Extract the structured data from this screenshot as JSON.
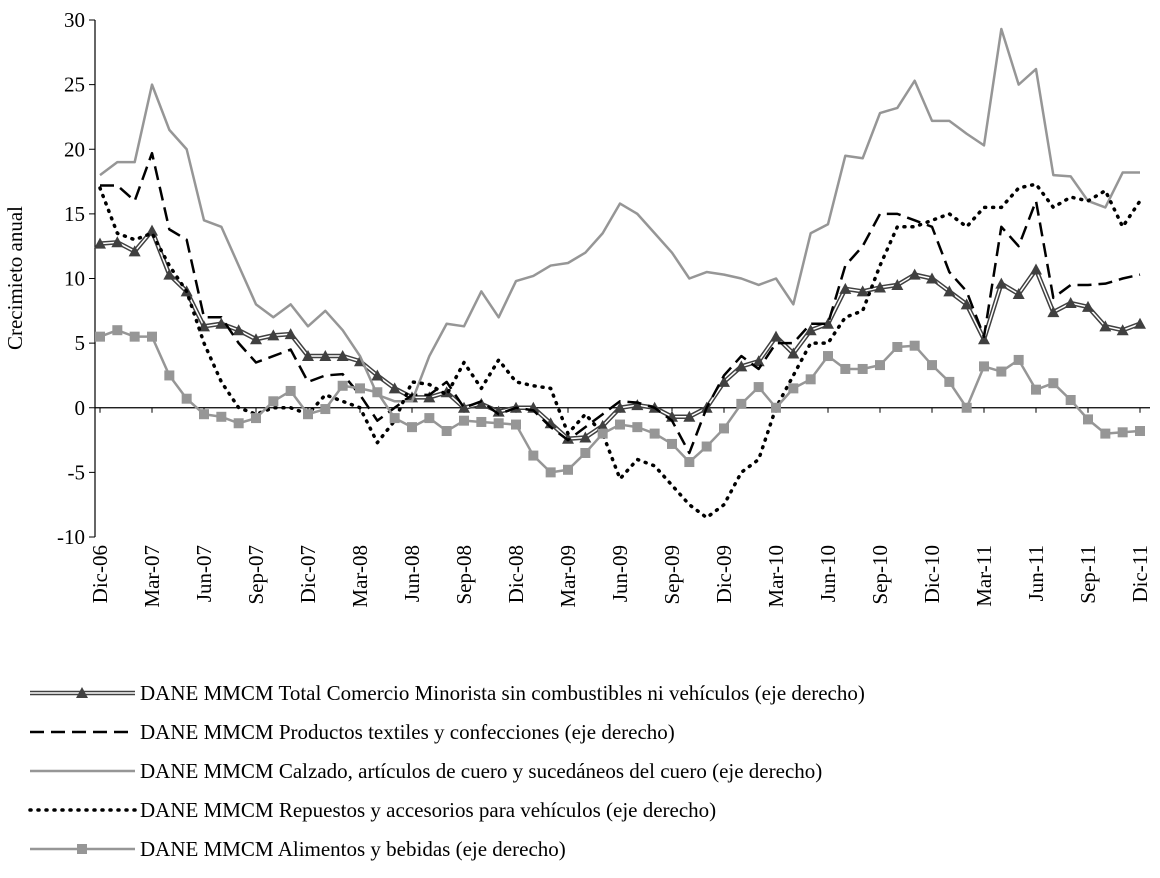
{
  "chart_data": {
    "type": "line",
    "ylabel": "Crecimieto anual",
    "categories": [
      "Dic-06",
      null,
      null,
      "Mar-07",
      null,
      null,
      "Jun-07",
      null,
      null,
      "Sep-07",
      null,
      null,
      "Dic-07",
      null,
      null,
      "Mar-08",
      null,
      null,
      "Jun-08",
      null,
      null,
      "Sep-08",
      null,
      null,
      "Dic-08",
      null,
      null,
      "Mar-09",
      null,
      null,
      "Jun-09",
      null,
      null,
      "Sep-09",
      null,
      null,
      "Dic-09",
      null,
      null,
      "Mar-10",
      null,
      null,
      "Jun-10",
      null,
      null,
      "Sep-10",
      null,
      null,
      "Dic-10",
      null,
      null,
      "Mar-11",
      null,
      null,
      "Jun-11",
      null,
      null,
      "Sep-11",
      null,
      null,
      "Dic-11"
    ],
    "ylim": [
      -10,
      30
    ],
    "yticks": [
      -10,
      -5,
      0,
      5,
      10,
      15,
      20,
      25,
      30
    ],
    "series": [
      {
        "name": "DANE MMCM Total Comercio Minorista sin combustibles ni vehículos (eje derecho)",
        "color": "#404040",
        "style": "double",
        "marker": "triangle",
        "values": [
          12.7,
          12.8,
          12.1,
          13.7,
          10.3,
          9,
          6.3,
          6.5,
          6,
          5.3,
          5.6,
          5.7,
          4,
          4,
          4,
          3.6,
          2.5,
          1.5,
          0.8,
          0.8,
          1.2,
          0,
          0.3,
          -0.3,
          0,
          0,
          -1.2,
          -2.4,
          -2.3,
          -1.4,
          0,
          0.2,
          0,
          -0.7,
          -0.7,
          0,
          2,
          3.2,
          3.6,
          5.5,
          4.2,
          6,
          6.5,
          9.2,
          9,
          9.3,
          9.5,
          10.3,
          10,
          9,
          8,
          5.3,
          9.6,
          8.8,
          10.7,
          7.4,
          8.1,
          7.8,
          6.3,
          6,
          6.5
        ]
      },
      {
        "name": "DANE MMCM Productos textiles y confecciones (eje derecho)",
        "color": "#000000",
        "style": "dashed",
        "marker": null,
        "values": [
          17.2,
          17.2,
          16,
          19.7,
          13.8,
          13,
          7,
          7,
          5,
          3.5,
          4,
          4.5,
          2,
          2.5,
          2.6,
          1,
          -1,
          0,
          1,
          1,
          2,
          0,
          0.5,
          -0.5,
          0,
          -0.2,
          -1.5,
          -2.5,
          -1.5,
          -0.5,
          0.5,
          0.4,
          0,
          -1,
          -3.5,
          0,
          2.5,
          4,
          3,
          5,
          5,
          6.5,
          6.5,
          11,
          12.5,
          15,
          15,
          14.5,
          14,
          10.5,
          9,
          5.5,
          14,
          12.5,
          16,
          8.5,
          9.5,
          9.5,
          9.6,
          10,
          10.3
        ]
      },
      {
        "name": "DANE MMCM Calzado, artículos de cuero y sucedáneos del cuero (eje derecho)",
        "color": "#969696",
        "style": "solid",
        "marker": null,
        "values": [
          18,
          19,
          19,
          25,
          21.5,
          20,
          14.5,
          14,
          11,
          8,
          7,
          8,
          6.3,
          7.5,
          6,
          4,
          1,
          0.5,
          0.5,
          4,
          6.5,
          6.3,
          9,
          7,
          9.8,
          10.2,
          11,
          11.2,
          12,
          13.5,
          15.8,
          15,
          13.5,
          12,
          10,
          10.5,
          10.3,
          10,
          9.5,
          10,
          8,
          13.5,
          14.2,
          19.5,
          19.3,
          22.8,
          23.2,
          25.3,
          22.2,
          22.2,
          21.2,
          20.3,
          29.3,
          25,
          26.2,
          18,
          17.9,
          16,
          15.5,
          18.2,
          18.2
        ]
      },
      {
        "name": "DANE MMCM Repuestos y accesorios para vehículos (eje derecho)",
        "color": "#000000",
        "style": "dotted",
        "marker": null,
        "values": [
          17,
          13.5,
          13,
          13.5,
          11,
          9,
          5,
          2,
          0,
          -0.5,
          0,
          0,
          -0.5,
          1,
          0.5,
          0,
          -2.7,
          -1,
          2,
          1.8,
          1,
          3.5,
          1.5,
          3.7,
          2,
          1.7,
          1.5,
          -2,
          -0.5,
          -2,
          -5.5,
          -4,
          -4.5,
          -6,
          -7.5,
          -8.5,
          -7.5,
          -5,
          -4,
          0,
          2.5,
          5,
          5,
          7,
          7.5,
          11,
          14,
          14,
          14.5,
          15,
          14,
          15.5,
          15.5,
          17,
          17.3,
          15.5,
          16.3,
          16,
          16.8,
          14,
          16
        ]
      },
      {
        "name": "DANE MMCM Alimentos y bebidas (eje derecho)",
        "color": "#969696",
        "style": "solid",
        "marker": "square",
        "values": [
          5.5,
          6,
          5.5,
          5.5,
          2.5,
          0.7,
          -0.5,
          -0.7,
          -1.2,
          -0.8,
          0.5,
          1.3,
          -0.5,
          -0.1,
          1.7,
          1.5,
          1.2,
          -0.8,
          -1.5,
          -0.8,
          -1.8,
          -1,
          -1.1,
          -1.2,
          -1.3,
          -3.7,
          -5,
          -4.8,
          -3.5,
          -2,
          -1.3,
          -1.5,
          -2,
          -2.8,
          -4.2,
          -3,
          -1.6,
          0.3,
          1.6,
          0,
          1.5,
          2.2,
          4,
          3,
          3,
          3.3,
          4.7,
          4.8,
          3.3,
          2,
          0,
          3.2,
          2.8,
          3.7,
          1.4,
          1.9,
          0.6,
          -0.9,
          -2,
          -1.9,
          -1.8
        ]
      }
    ]
  }
}
